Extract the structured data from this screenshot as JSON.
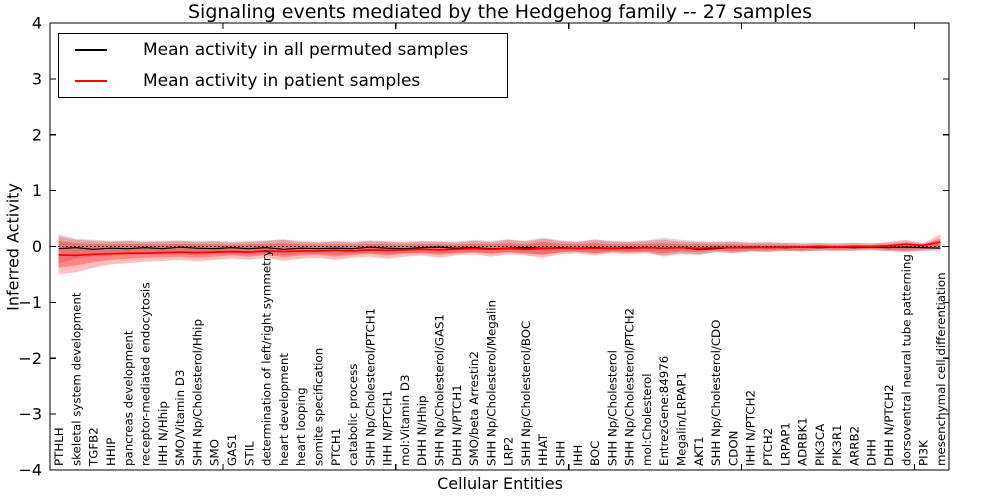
{
  "chart_data": {
    "type": "line",
    "title": "Signaling events mediated by the Hedgehog family -- 27 samples",
    "xlabel": "Cellular Entities",
    "ylabel": "Inferred Activity",
    "ylim": [
      -4,
      4
    ],
    "yticks": [
      4,
      3,
      2,
      1,
      0,
      -1,
      -2,
      -3,
      -4
    ],
    "ytick_labels": [
      "4",
      "3",
      "2",
      "1",
      "0",
      "−1",
      "−2",
      "−3",
      "−4"
    ],
    "xtick_values": [
      10,
      20,
      30,
      40,
      50
    ],
    "grid": false,
    "legend_position": "upper left",
    "zero_line": {
      "y": 0,
      "style": "dotted",
      "color": "#000000"
    },
    "categories": [
      "PTHLH",
      "skeletal system development",
      "TGFB2",
      "HHIP",
      "pancreas development",
      "receptor-mediated endocytosis",
      "IHH N/Hhip",
      "SMO/Vitamin D3",
      "SHH Np/Cholesterol/Hhip",
      "SMO",
      "GAS1",
      "STIL",
      "determination of left/right symmetry",
      "heart development",
      "heart looping",
      "somite specification",
      "PTCH1",
      "catabolic process",
      "SHH Np/Cholesterol/PTCH1",
      "IHH N/PTCH1",
      "mol:Vitamin D3",
      "DHH N/Hhip",
      "SHH Np/Cholesterol/GAS1",
      "DHH N/PTCH1",
      "SMO/beta Arrestin2",
      "SHH Np/Cholesterol/Megalin",
      "LRP2",
      "SHH Np/Cholesterol/BOC",
      "HHAT",
      "SHH",
      "IHH",
      "BOC",
      "SHH Np/Cholesterol",
      "SHH Np/Cholesterol/PTCH2",
      "mol:Cholesterol",
      "EntrezGene:84976",
      "Megalin/LRPAP1",
      "AKT1",
      "SHH Np/Cholesterol/CDO",
      "CDON",
      "IHH N/PTCH2",
      "PTCH2",
      "LRPAP1",
      "ADRBK1",
      "PIK3CA",
      "PIK3R1",
      "ARRB2",
      "DHH",
      "DHH N/PTCH2",
      "dorsoventral neural tube patterning",
      "PI3K",
      "mesenchymal cell differentiation"
    ],
    "series": [
      {
        "name": "Mean activity in all permuted samples",
        "color": "#000000",
        "values": [
          -0.04,
          -0.02,
          -0.05,
          -0.03,
          -0.04,
          -0.02,
          -0.04,
          -0.01,
          -0.03,
          -0.04,
          -0.02,
          -0.04,
          -0.02,
          -0.05,
          -0.03,
          -0.04,
          -0.03,
          -0.04,
          -0.01,
          -0.03,
          -0.04,
          -0.02,
          -0.01,
          -0.03,
          -0.02,
          -0.04,
          -0.03,
          -0.02,
          -0.03,
          -0.02,
          -0.03,
          -0.02,
          -0.03,
          -0.02,
          -0.02,
          -0.03,
          -0.02,
          -0.05,
          -0.04,
          -0.02,
          -0.02,
          -0.01,
          -0.02,
          -0.01,
          -0.02,
          -0.01,
          -0.02,
          -0.01,
          -0.02,
          -0.01,
          -0.02,
          -0.03
        ]
      },
      {
        "name": "Mean activity in patient samples",
        "color": "#ff0000",
        "values": [
          -0.15,
          -0.16,
          -0.14,
          -0.13,
          -0.12,
          -0.12,
          -0.11,
          -0.1,
          -0.11,
          -0.1,
          -0.09,
          -0.1,
          -0.08,
          -0.09,
          -0.08,
          -0.08,
          -0.07,
          -0.08,
          -0.06,
          -0.07,
          -0.06,
          -0.05,
          -0.06,
          -0.05,
          -0.04,
          -0.05,
          -0.04,
          -0.05,
          -0.04,
          -0.03,
          -0.04,
          -0.03,
          -0.04,
          -0.03,
          -0.02,
          -0.03,
          -0.02,
          -0.03,
          -0.02,
          -0.02,
          -0.01,
          -0.02,
          -0.01,
          -0.01,
          0.0,
          -0.01,
          0.0,
          0.0,
          0.01,
          0.04,
          0.02,
          0.08
        ]
      }
    ],
    "bands": [
      {
        "name": "permuted-range",
        "color": "#999999",
        "opacity": 0.35,
        "upper": [
          0.22,
          0.14,
          0.12,
          0.1,
          0.11,
          0.1,
          0.1,
          0.11,
          0.1,
          0.1,
          0.09,
          0.1,
          0.11,
          0.13,
          0.1,
          0.09,
          0.1,
          0.09,
          0.11,
          0.1,
          0.09,
          0.1,
          0.1,
          0.09,
          0.12,
          0.1,
          0.13,
          0.1,
          0.16,
          0.11,
          0.09,
          0.13,
          0.1,
          0.09,
          0.11,
          0.16,
          0.12,
          0.1,
          0.08,
          0.09,
          0.08,
          0.08,
          0.07,
          0.07,
          0.07,
          0.06,
          0.07,
          0.06,
          0.07,
          0.09,
          0.07,
          0.08
        ],
        "lower": [
          -0.3,
          -0.22,
          -0.18,
          -0.16,
          -0.16,
          -0.15,
          -0.15,
          -0.14,
          -0.16,
          -0.14,
          -0.13,
          -0.14,
          -0.13,
          -0.16,
          -0.14,
          -0.13,
          -0.15,
          -0.13,
          -0.12,
          -0.14,
          -0.12,
          -0.11,
          -0.13,
          -0.11,
          -0.11,
          -0.12,
          -0.11,
          -0.12,
          -0.14,
          -0.11,
          -0.1,
          -0.12,
          -0.1,
          -0.11,
          -0.1,
          -0.18,
          -0.14,
          -0.16,
          -0.1,
          -0.11,
          -0.09,
          -0.09,
          -0.08,
          -0.08,
          -0.08,
          -0.07,
          -0.08,
          -0.07,
          -0.08,
          -0.09,
          -0.08,
          -0.09
        ]
      },
      {
        "name": "patient-range-outer",
        "color": "#ff0000",
        "opacity": 0.25,
        "upper": [
          0.18,
          0.12,
          0.1,
          0.09,
          0.1,
          0.08,
          0.09,
          0.1,
          0.08,
          0.09,
          0.07,
          0.08,
          0.1,
          0.12,
          0.08,
          0.07,
          0.09,
          0.07,
          0.1,
          0.08,
          0.07,
          0.09,
          0.08,
          0.07,
          0.1,
          0.08,
          0.12,
          0.09,
          0.14,
          0.1,
          0.08,
          0.12,
          0.09,
          0.08,
          0.1,
          0.12,
          0.09,
          0.08,
          0.07,
          0.08,
          0.06,
          0.07,
          0.06,
          0.05,
          0.06,
          0.05,
          0.06,
          0.05,
          0.08,
          0.12,
          0.05,
          0.22
        ],
        "lower": [
          -0.5,
          -0.46,
          -0.38,
          -0.32,
          -0.3,
          -0.27,
          -0.26,
          -0.24,
          -0.27,
          -0.24,
          -0.22,
          -0.24,
          -0.2,
          -0.26,
          -0.22,
          -0.2,
          -0.24,
          -0.2,
          -0.18,
          -0.22,
          -0.18,
          -0.16,
          -0.2,
          -0.16,
          -0.14,
          -0.18,
          -0.14,
          -0.16,
          -0.2,
          -0.14,
          -0.12,
          -0.16,
          -0.12,
          -0.14,
          -0.12,
          -0.16,
          -0.12,
          -0.14,
          -0.1,
          -0.12,
          -0.09,
          -0.1,
          -0.08,
          -0.09,
          -0.07,
          -0.08,
          -0.07,
          -0.06,
          -0.08,
          -0.1,
          -0.07,
          -0.05
        ]
      },
      {
        "name": "patient-range-inner",
        "color": "#ff0000",
        "opacity": 0.3,
        "upper": [
          0.1,
          0.06,
          0.05,
          0.04,
          0.05,
          0.04,
          0.04,
          0.05,
          0.04,
          0.04,
          0.03,
          0.04,
          0.05,
          0.06,
          0.04,
          0.03,
          0.04,
          0.03,
          0.05,
          0.04,
          0.03,
          0.04,
          0.04,
          0.03,
          0.05,
          0.04,
          0.06,
          0.04,
          0.08,
          0.05,
          0.04,
          0.06,
          0.04,
          0.04,
          0.05,
          0.06,
          0.04,
          0.04,
          0.03,
          0.04,
          0.03,
          0.03,
          0.03,
          0.02,
          0.03,
          0.02,
          0.03,
          0.02,
          0.04,
          0.07,
          0.03,
          0.15
        ],
        "lower": [
          -0.38,
          -0.34,
          -0.28,
          -0.24,
          -0.22,
          -0.2,
          -0.19,
          -0.18,
          -0.2,
          -0.18,
          -0.16,
          -0.18,
          -0.15,
          -0.19,
          -0.16,
          -0.15,
          -0.18,
          -0.15,
          -0.13,
          -0.16,
          -0.13,
          -0.12,
          -0.15,
          -0.12,
          -0.1,
          -0.13,
          -0.1,
          -0.12,
          -0.15,
          -0.1,
          -0.09,
          -0.12,
          -0.09,
          -0.1,
          -0.09,
          -0.12,
          -0.09,
          -0.1,
          -0.07,
          -0.09,
          -0.07,
          -0.07,
          -0.06,
          -0.07,
          -0.05,
          -0.06,
          -0.05,
          -0.04,
          -0.06,
          -0.07,
          -0.05,
          -0.03
        ]
      }
    ]
  }
}
